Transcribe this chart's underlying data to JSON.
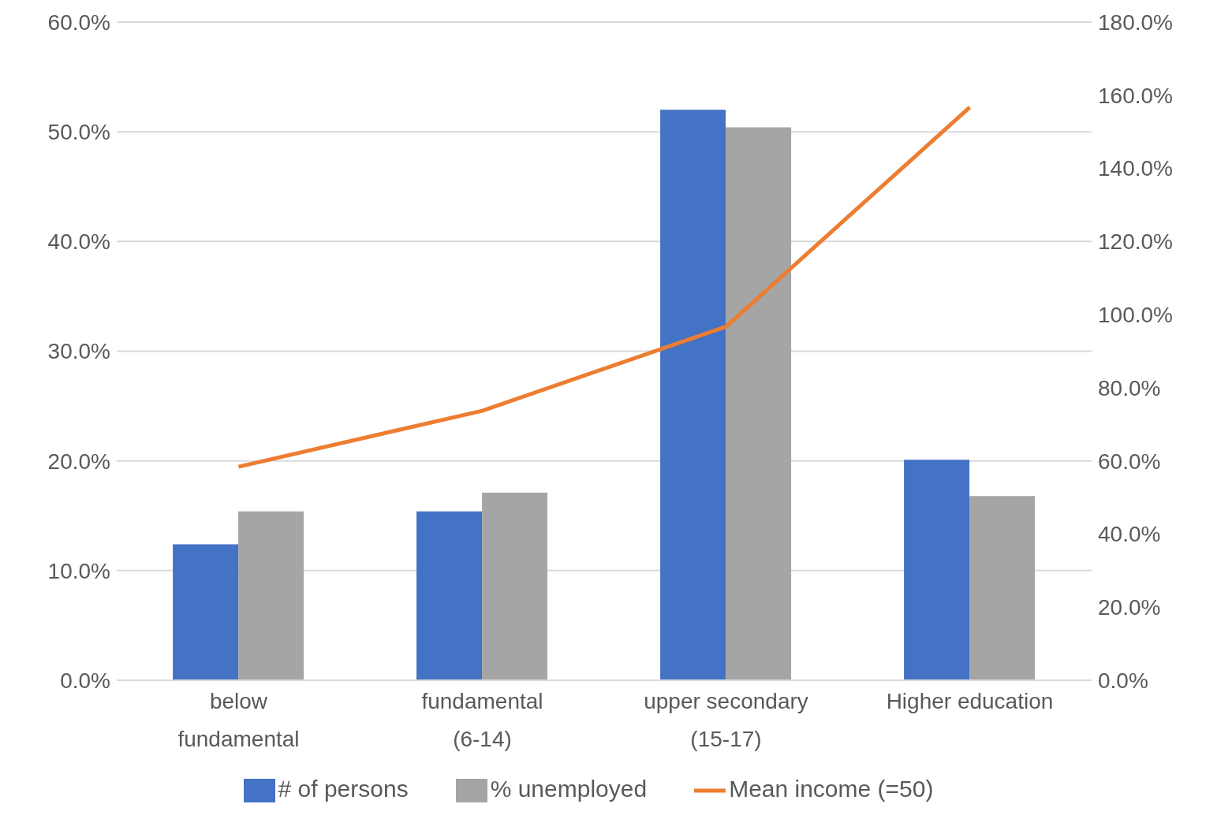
{
  "chart_data": {
    "type": "bar",
    "categories": [
      "below fundamental",
      "fundamental (6-14)",
      "upper secondary (15-17)",
      "Higher education"
    ],
    "series": [
      {
        "name": "# of persons",
        "color": "#4472c4",
        "values": [
          12.4,
          15.4,
          52.0,
          20.1
        ]
      },
      {
        "name": "% unemployed",
        "color": "#a5a5a5",
        "values": [
          15.4,
          17.1,
          50.4,
          16.8
        ]
      },
      {
        "name": "Mean income (=50)",
        "type": "line",
        "axis": "y2",
        "color": "#ed7d31",
        "values": [
          58.4,
          73.7,
          96.7,
          156.7
        ]
      }
    ],
    "ylim": [
      0,
      60
    ],
    "yticks": [
      {
        "value": 0,
        "label": "0.0%"
      },
      {
        "value": 10,
        "label": "10.0%"
      },
      {
        "value": 20,
        "label": "20.0%"
      },
      {
        "value": 30,
        "label": "30.0%"
      },
      {
        "value": 40,
        "label": "40.0%"
      },
      {
        "value": 50,
        "label": "50.0%"
      },
      {
        "value": 60,
        "label": "60.0%"
      }
    ],
    "y2lim": [
      0,
      180
    ],
    "y2ticks": [
      {
        "value": 0,
        "label": "0.0%"
      },
      {
        "value": 20,
        "label": "20.0%"
      },
      {
        "value": 40,
        "label": "40.0%"
      },
      {
        "value": 60,
        "label": "60.0%"
      },
      {
        "value": 80,
        "label": "80.0%"
      },
      {
        "value": 100,
        "label": "100.0%"
      },
      {
        "value": 120,
        "label": "120.0%"
      },
      {
        "value": 140,
        "label": "140.0%"
      },
      {
        "value": 160,
        "label": "160.0%"
      },
      {
        "value": 180,
        "label": "180.0%"
      }
    ],
    "grid": "y",
    "legend": "bottom",
    "marker": "none"
  }
}
